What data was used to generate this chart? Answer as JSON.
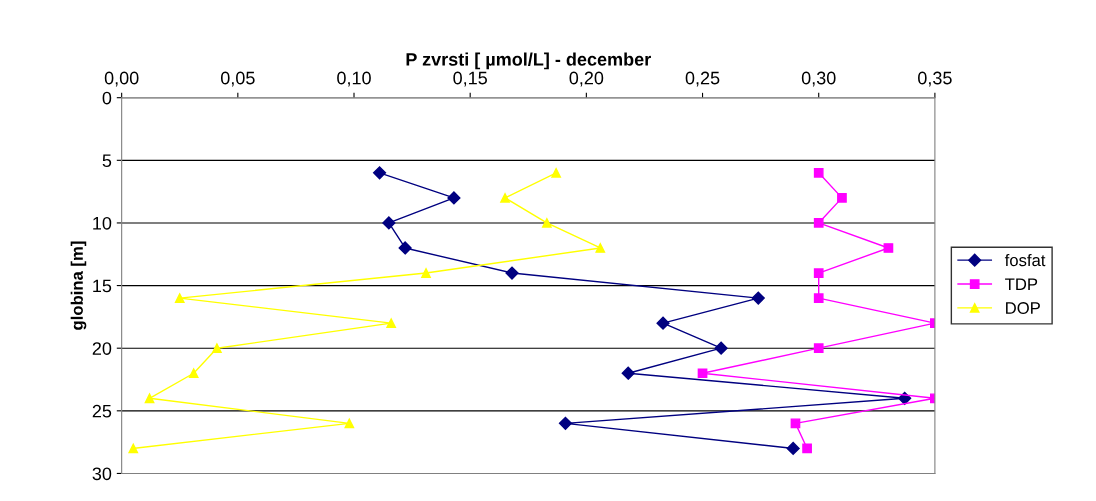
{
  "chart_data": {
    "type": "line",
    "xlabel": "P zvrsti [ µmol/L] - december",
    "ylabel": "globina [m]",
    "xlim": [
      0,
      0.35
    ],
    "xticks": [
      {
        "value": 0,
        "label": "0,00"
      },
      {
        "value": 0.05,
        "label": "0,05"
      },
      {
        "value": 0.1,
        "label": "0,10"
      },
      {
        "value": 0.15,
        "label": "0,15"
      },
      {
        "value": 0.2,
        "label": "0,20"
      },
      {
        "value": 0.25,
        "label": "0,25"
      },
      {
        "value": 0.3,
        "label": "0,30"
      },
      {
        "value": 0.35,
        "label": "0,35"
      }
    ],
    "ylim": [
      30,
      0
    ],
    "yticks": [
      0,
      5,
      10,
      15,
      20,
      25,
      30
    ],
    "grid": "y",
    "legend": "right",
    "line_style": "solid",
    "series": [
      {
        "name": "fosfat",
        "color": "#000080",
        "marker": "diamond",
        "x": [
          0.111,
          0.143,
          0.115,
          0.122,
          0.168,
          0.274,
          0.233,
          0.258,
          0.218,
          0.337,
          0.191,
          0.289
        ],
        "values": [
          6,
          8,
          10,
          12,
          14,
          16,
          18,
          20,
          22,
          24,
          26,
          28
        ]
      },
      {
        "name": "TDP",
        "color": "#ff00ff",
        "marker": "square",
        "x": [
          0.3,
          0.31,
          0.3,
          0.33,
          0.3,
          0.3,
          0.35,
          0.3,
          0.25,
          0.35,
          0.29,
          0.295
        ],
        "values": [
          6,
          8,
          10,
          12,
          14,
          16,
          18,
          20,
          22,
          24,
          26,
          28
        ]
      },
      {
        "name": "DOP",
        "color": "#ffff00",
        "marker": "triangle",
        "x": [
          0.187,
          0.165,
          0.183,
          0.206,
          0.131,
          0.025,
          0.116,
          0.041,
          0.031,
          0.012,
          0.098,
          0.005
        ],
        "values": [
          6,
          8,
          10,
          12,
          14,
          16,
          18,
          20,
          22,
          24,
          26,
          28
        ]
      }
    ]
  }
}
